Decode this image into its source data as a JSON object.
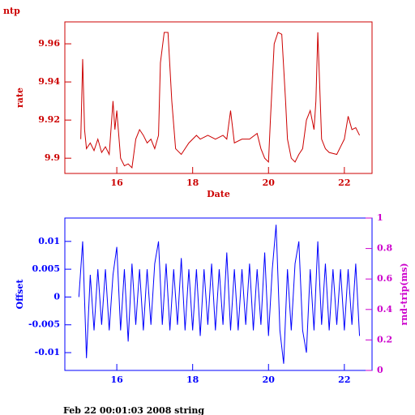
{
  "chart_data": [
    {
      "type": "line",
      "title": "ntp",
      "xlabel": "Date",
      "ylabel": "rate",
      "x": [
        15.05,
        15.1,
        15.15,
        15.2,
        15.3,
        15.4,
        15.5,
        15.6,
        15.7,
        15.8,
        15.9,
        15.95,
        16.0,
        16.1,
        16.2,
        16.3,
        16.4,
        16.5,
        16.6,
        16.7,
        16.8,
        16.9,
        17.0,
        17.1,
        17.15,
        17.25,
        17.35,
        17.45,
        17.55,
        17.7,
        17.9,
        18.1,
        18.2,
        18.4,
        18.6,
        18.8,
        18.9,
        19.0,
        19.1,
        19.3,
        19.5,
        19.7,
        19.8,
        19.9,
        20.0,
        20.05,
        20.15,
        20.25,
        20.35,
        20.45,
        20.5,
        20.6,
        20.7,
        20.8,
        20.9,
        21.0,
        21.1,
        21.2,
        21.25,
        21.3,
        21.4,
        21.5,
        21.6,
        21.8,
        21.9,
        22.0,
        22.1,
        22.2,
        22.3,
        22.4
      ],
      "series": [
        {
          "name": "rate",
          "color": "#cc0000",
          "values": [
            9.91,
            9.952,
            9.915,
            9.905,
            9.908,
            9.904,
            9.91,
            9.903,
            9.906,
            9.902,
            9.93,
            9.915,
            9.925,
            9.9,
            9.896,
            9.897,
            9.895,
            9.91,
            9.915,
            9.912,
            9.908,
            9.91,
            9.905,
            9.912,
            9.95,
            9.966,
            9.966,
            9.93,
            9.905,
            9.902,
            9.908,
            9.912,
            9.91,
            9.912,
            9.91,
            9.912,
            9.91,
            9.925,
            9.908,
            9.91,
            9.91,
            9.913,
            9.905,
            9.9,
            9.898,
            9.92,
            9.96,
            9.966,
            9.965,
            9.93,
            9.91,
            9.9,
            9.898,
            9.902,
            9.905,
            9.92,
            9.925,
            9.915,
            9.93,
            9.966,
            9.91,
            9.905,
            9.903,
            9.902,
            9.906,
            9.91,
            9.922,
            9.915,
            9.916,
            9.912
          ]
        }
      ],
      "xlim": [
        14.63,
        22.73
      ],
      "ylim": [
        9.892,
        9.9715
      ],
      "xticks": [
        16,
        18,
        20,
        22
      ],
      "yticks": [
        9.9,
        9.92,
        9.94,
        9.96
      ]
    },
    {
      "type": "line",
      "ylabel": "Offset",
      "y2label": "rnd-trip(ms)",
      "x": [
        15.0,
        15.1,
        15.2,
        15.3,
        15.4,
        15.5,
        15.6,
        15.7,
        15.8,
        15.9,
        16.0,
        16.1,
        16.2,
        16.3,
        16.4,
        16.5,
        16.6,
        16.7,
        16.8,
        16.9,
        17.0,
        17.1,
        17.2,
        17.3,
        17.4,
        17.5,
        17.6,
        17.7,
        17.8,
        17.9,
        18.0,
        18.1,
        18.2,
        18.3,
        18.4,
        18.5,
        18.6,
        18.7,
        18.8,
        18.9,
        19.0,
        19.1,
        19.2,
        19.3,
        19.4,
        19.5,
        19.6,
        19.7,
        19.8,
        19.9,
        20.0,
        20.1,
        20.2,
        20.3,
        20.4,
        20.5,
        20.6,
        20.7,
        20.8,
        20.9,
        21.0,
        21.1,
        21.2,
        21.3,
        21.4,
        21.5,
        21.6,
        21.7,
        21.8,
        21.9,
        22.0,
        22.1,
        22.2,
        22.3,
        22.4
      ],
      "series": [
        {
          "name": "Offset",
          "color": "#0000ff",
          "values": [
            0,
            0.01,
            -0.011,
            0.004,
            -0.006,
            0.005,
            -0.005,
            0.005,
            -0.006,
            0.004,
            0.009,
            -0.006,
            0.005,
            -0.008,
            0.006,
            -0.005,
            0.005,
            -0.006,
            0.005,
            -0.005,
            0.006,
            0.01,
            -0.005,
            0.006,
            -0.006,
            0.005,
            -0.005,
            0.007,
            -0.006,
            0.005,
            -0.006,
            0.005,
            -0.007,
            0.005,
            -0.005,
            0.006,
            -0.006,
            0.005,
            -0.005,
            0.008,
            -0.006,
            0.005,
            -0.006,
            0.005,
            -0.005,
            0.006,
            -0.006,
            0.005,
            -0.005,
            0.008,
            -0.007,
            0.005,
            0.013,
            -0.006,
            -0.012,
            0.005,
            -0.006,
            0.006,
            0.01,
            -0.006,
            -0.01,
            0.005,
            -0.006,
            0.01,
            -0.005,
            0.006,
            -0.006,
            0.005,
            -0.005,
            0.005,
            -0.006,
            0.005,
            -0.005,
            0.006,
            -0.007
          ]
        }
      ],
      "xlim": [
        14.63,
        22.73
      ],
      "ylim": [
        -0.0132,
        0.0142
      ],
      "y2lim": [
        0,
        1
      ],
      "xticks": [
        16,
        18,
        20,
        22
      ],
      "yticks": [
        -0.01,
        -0.005,
        0,
        0.005,
        0.01
      ],
      "y2ticks": [
        0,
        0.2,
        0.4,
        0.6,
        0.8,
        1
      ],
      "y2color": "#cc00cc"
    }
  ],
  "footer": "Feb 22 00:01:03 2008 string"
}
